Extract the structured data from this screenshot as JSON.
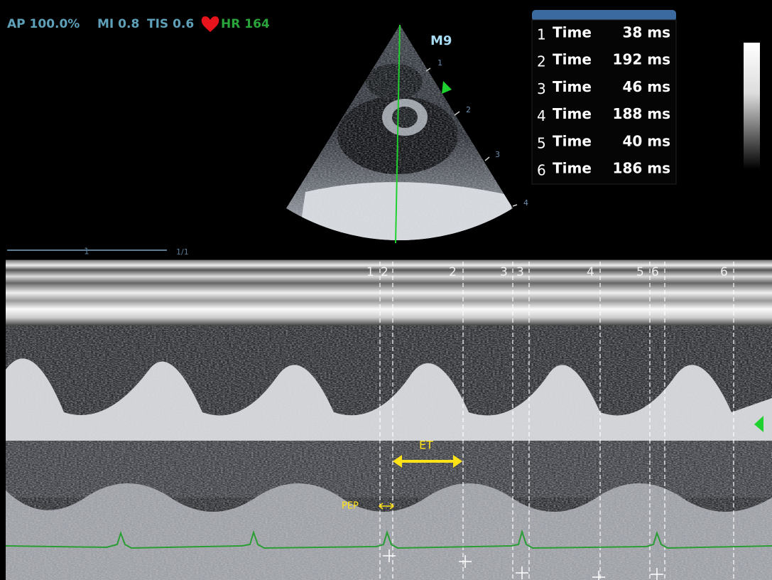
{
  "status_bar": {
    "ap": "AP 100.0%",
    "mi": "MI 0.8",
    "tis": "TIS 0.6",
    "hr": "HR 164"
  },
  "probe_label": "M9",
  "depth_marks": [
    "1",
    "2",
    "3",
    "4"
  ],
  "cine_bar": {
    "marker": "1",
    "frame": "1/1"
  },
  "measurements": [
    {
      "index": "1",
      "name": "Time",
      "value": "38 ms"
    },
    {
      "index": "2",
      "name": "Time",
      "value": "192 ms"
    },
    {
      "index": "3",
      "name": "Time",
      "value": "46 ms"
    },
    {
      "index": "4",
      "name": "Time",
      "value": "188 ms"
    },
    {
      "index": "5",
      "name": "Time",
      "value": "40 ms"
    },
    {
      "index": "6",
      "name": "Time",
      "value": "186 ms"
    }
  ],
  "calipers": [
    "1",
    "2",
    "2",
    "3",
    "3",
    "4",
    "5",
    "6",
    "6"
  ],
  "annotations": {
    "et": "ET",
    "pep": "PEP"
  }
}
